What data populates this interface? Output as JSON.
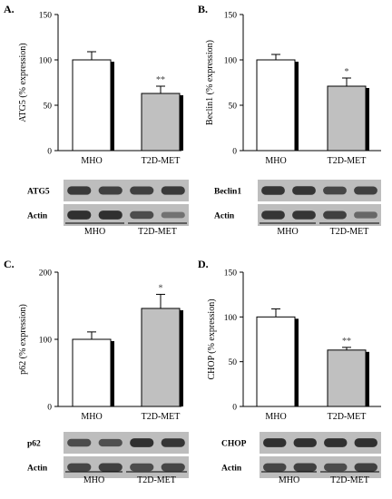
{
  "colors": {
    "control_bar": "#ffffff",
    "treated_bar": "#c0c0c0",
    "bar_edge": "#000000",
    "bar_shadow": "#000000",
    "blot_bg": "#bdbdbd",
    "band": "#2a2a2a"
  },
  "chart_data": [
    {
      "panel": "A.",
      "type": "bar",
      "ylabel": "ATG5  (% expression)",
      "categories": [
        "MHO",
        "T2D-MET"
      ],
      "values": [
        100,
        63
      ],
      "errors": [
        9,
        8
      ],
      "significance": [
        "",
        "**"
      ],
      "ylim": [
        0,
        150
      ],
      "yticks": [
        0,
        50,
        100,
        150
      ],
      "blot": {
        "rows": [
          {
            "label": "ATG5",
            "bands": [
              0.85,
              0.8,
              0.8,
              0.85
            ]
          },
          {
            "label": "Actin",
            "bands": [
              0.95,
              0.95,
              0.7,
              0.35
            ]
          }
        ],
        "groups": [
          "MHO",
          "T2D-MET"
        ]
      }
    },
    {
      "panel": "B.",
      "type": "bar",
      "ylabel": "Beclin1  (% expression)",
      "categories": [
        "MHO",
        "T2D-MET"
      ],
      "values": [
        100,
        71
      ],
      "errors": [
        6,
        9
      ],
      "significance": [
        "",
        "*"
      ],
      "ylim": [
        0,
        150
      ],
      "yticks": [
        0,
        50,
        100,
        150
      ],
      "blot": {
        "rows": [
          {
            "label": "Beclin1",
            "bands": [
              0.9,
              0.9,
              0.75,
              0.8
            ]
          },
          {
            "label": "Actin",
            "bands": [
              0.9,
              0.9,
              0.8,
              0.45
            ]
          }
        ],
        "groups": [
          "MHO",
          "T2D-MET"
        ]
      }
    },
    {
      "panel": "C.",
      "type": "bar",
      "ylabel": "p62  (% expression)",
      "categories": [
        "MHO",
        "T2D-MET"
      ],
      "values": [
        100,
        146
      ],
      "errors": [
        11,
        21
      ],
      "significance": [
        "",
        "*"
      ],
      "ylim": [
        0,
        200
      ],
      "yticks": [
        0,
        100,
        200
      ],
      "blot": {
        "rows": [
          {
            "label": "p62",
            "bands": [
              0.7,
              0.65,
              0.95,
              0.9
            ]
          },
          {
            "label": "Actin",
            "bands": [
              0.75,
              0.8,
              0.7,
              0.75
            ]
          }
        ],
        "groups": [
          "MHO",
          "T2D-MET"
        ]
      }
    },
    {
      "panel": "D.",
      "type": "bar",
      "ylabel": "CHOP  (% expression)",
      "categories": [
        "MHO",
        "T2D-MET"
      ],
      "values": [
        100,
        63
      ],
      "errors": [
        9,
        3
      ],
      "significance": [
        "",
        "**"
      ],
      "ylim": [
        0,
        150
      ],
      "yticks": [
        0,
        50,
        100,
        150
      ],
      "blot": {
        "rows": [
          {
            "label": "CHOP",
            "bands": [
              0.95,
              0.95,
              0.95,
              0.95
            ]
          },
          {
            "label": "Actin",
            "bands": [
              0.75,
              0.8,
              0.7,
              0.8
            ]
          }
        ],
        "groups": [
          "MHO",
          "T2D-MET"
        ]
      }
    }
  ]
}
